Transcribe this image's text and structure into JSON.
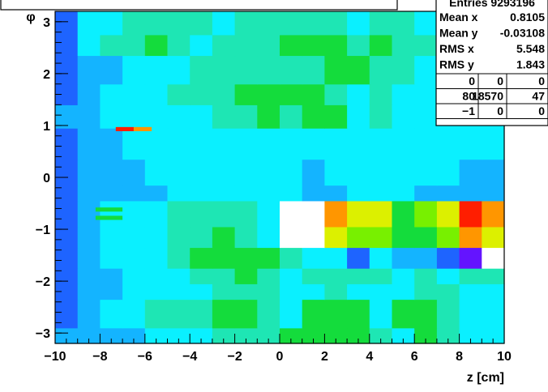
{
  "chart_data": {
    "type": "heatmap",
    "title": "",
    "xlabel": "z [cm]",
    "ylabel": "φ",
    "xlim": [
      -10,
      10
    ],
    "ylim": [
      -3.2,
      3.2
    ],
    "x_ticks": [
      -10,
      -8,
      -6,
      -4,
      -2,
      0,
      2,
      4,
      6,
      8,
      10
    ],
    "y_ticks": [
      -3,
      -2,
      -1,
      0,
      1,
      2,
      3
    ],
    "x_tick_labels": [
      "−10",
      "−8",
      "−6",
      "−4",
      "−2",
      "0",
      "2",
      "4",
      "6",
      "8",
      "10"
    ],
    "y_tick_labels": [
      "−3",
      "−2",
      "−1",
      "0",
      "1",
      "2",
      "3"
    ],
    "color_scale": [
      "#0a14ff",
      "#1e64ff",
      "#14b4ff",
      "#0af0ff",
      "#1ee6b4",
      "#14dc3c",
      "#78f000",
      "#dcf000",
      "#ff9600",
      "#ff1e00",
      "#ffffff",
      "#6414ff"
    ],
    "x_bins": [
      -10,
      -9,
      -8,
      -7,
      -6,
      -5,
      -4,
      -3,
      -2,
      -1,
      0,
      1,
      2,
      3,
      4,
      5,
      6,
      7,
      8,
      9,
      10
    ],
    "y_bands": [
      {
        "range": [
          -3.2,
          -2.9
        ],
        "levels": [
          2,
          2,
          2,
          2,
          3,
          3,
          3,
          4,
          4,
          4,
          5,
          5,
          5,
          5,
          4,
          3,
          5,
          4,
          3,
          3
        ]
      },
      {
        "range": [
          -2.9,
          -2.35
        ],
        "levels": [
          1,
          2,
          3,
          3,
          4,
          4,
          4,
          5,
          5,
          4,
          3,
          5,
          5,
          5,
          3,
          5,
          5,
          4,
          3,
          3
        ]
      },
      {
        "range": [
          -2.35,
          -2.05
        ],
        "levels": [
          1,
          2,
          2,
          3,
          3,
          3,
          3,
          4,
          4,
          4,
          3,
          3,
          4,
          3,
          3,
          3,
          4,
          4,
          3,
          3
        ]
      },
      {
        "range": [
          -2.05,
          -1.75
        ],
        "levels": [
          1,
          2,
          2,
          3,
          3,
          3,
          4,
          4,
          5,
          4,
          3,
          4,
          4,
          4,
          4,
          3,
          4,
          3,
          4,
          4
        ]
      },
      {
        "range": [
          -1.75,
          -1.35
        ],
        "levels": [
          1,
          2,
          3,
          3,
          3,
          4,
          5,
          5,
          5,
          5,
          4,
          3,
          3,
          1,
          3,
          2,
          2,
          1,
          11,
          10
        ]
      },
      {
        "range": [
          -1.35,
          -0.95
        ],
        "levels": [
          1,
          2,
          3,
          3,
          3,
          4,
          4,
          5,
          4,
          3,
          10,
          10,
          7,
          6,
          6,
          5,
          5,
          6,
          8,
          7
        ]
      },
      {
        "range": [
          -0.95,
          -0.45
        ],
        "levels": [
          1,
          2,
          3,
          3,
          3,
          4,
          4,
          4,
          4,
          3,
          10,
          10,
          8,
          7,
          7,
          5,
          6,
          7,
          9,
          8
        ]
      },
      {
        "range": [
          -0.45,
          -0.15
        ],
        "levels": [
          1,
          2,
          2,
          2,
          2,
          3,
          3,
          3,
          3,
          3,
          3,
          2,
          2,
          3,
          3,
          3,
          2,
          2,
          2,
          2
        ]
      },
      {
        "range": [
          -0.15,
          0.35
        ],
        "levels": [
          1,
          2,
          2,
          2,
          3,
          3,
          3,
          3,
          3,
          3,
          3,
          2,
          3,
          3,
          3,
          3,
          3,
          3,
          2,
          2
        ]
      },
      {
        "range": [
          0.35,
          0.95
        ],
        "levels": [
          1,
          2,
          2,
          3,
          3,
          3,
          3,
          3,
          3,
          3,
          3,
          3,
          3,
          3,
          3,
          3,
          3,
          3,
          3,
          3
        ]
      },
      {
        "range": [
          0.95,
          1.4
        ],
        "levels": [
          2,
          2,
          3,
          3,
          3,
          3,
          3,
          4,
          4,
          5,
          4,
          5,
          5,
          3,
          4,
          3,
          3,
          3,
          3,
          3
        ]
      },
      {
        "range": [
          1.4,
          1.8
        ],
        "levels": [
          1,
          2,
          3,
          3,
          3,
          4,
          4,
          4,
          5,
          5,
          5,
          5,
          4,
          3,
          4,
          3,
          3,
          3,
          3,
          3
        ]
      },
      {
        "range": [
          1.8,
          2.35
        ],
        "levels": [
          1,
          2,
          2,
          3,
          3,
          3,
          4,
          4,
          4,
          4,
          4,
          4,
          5,
          5,
          4,
          4,
          3,
          3,
          3,
          3
        ]
      },
      {
        "range": [
          2.35,
          2.75
        ],
        "levels": [
          1,
          3,
          4,
          4,
          5,
          4,
          3,
          4,
          4,
          4,
          5,
          5,
          5,
          4,
          5,
          4,
          4,
          4,
          3,
          3
        ]
      },
      {
        "range": [
          2.75,
          3.2
        ],
        "levels": [
          1,
          3,
          3,
          4,
          4,
          4,
          4,
          3,
          4,
          4,
          4,
          4,
          4,
          3,
          4,
          4,
          3,
          3,
          3,
          3
        ]
      }
    ],
    "thin_stripes": [
      {
        "y": 0.93,
        "x_start": -7.3,
        "x_end": -5.7,
        "levels": [
          9,
          8
        ]
      },
      {
        "y": -0.62,
        "x_start": -8.2,
        "x_end": -7.0,
        "levels": [
          5
        ]
      },
      {
        "y": -0.78,
        "x_start": -8.2,
        "x_end": -7.0,
        "levels": [
          5
        ]
      }
    ],
    "stats_box": {
      "title": "Entries 9293196",
      "rows": [
        {
          "label": "Mean x",
          "value": "0.8105"
        },
        {
          "label": "Mean y",
          "value": "-0.03108"
        },
        {
          "label": "RMS x",
          "value": "5.548"
        },
        {
          "label": "RMS y",
          "value": "1.843"
        }
      ],
      "grid": [
        [
          "0",
          "0",
          "0"
        ],
        [
          "80",
          "18570",
          "47"
        ],
        [
          "−1",
          "0",
          "0"
        ]
      ]
    }
  }
}
